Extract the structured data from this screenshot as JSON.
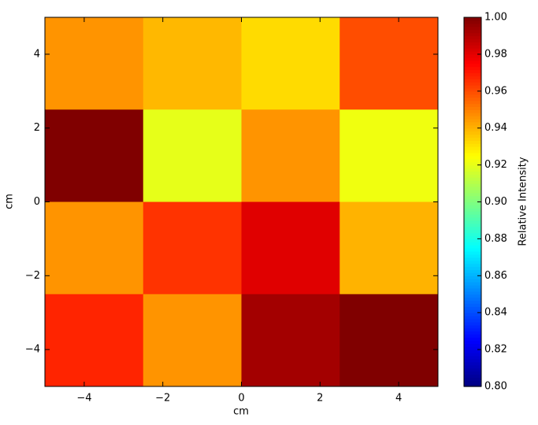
{
  "chart_data": {
    "type": "heatmap",
    "x": [
      -3.75,
      -1.25,
      1.25,
      3.75
    ],
    "y": [
      3.75,
      1.25,
      -1.25,
      -3.75
    ],
    "z": [
      [
        0.946,
        0.939,
        0.932,
        0.96
      ],
      [
        1.0,
        0.92,
        0.946,
        0.922
      ],
      [
        0.946,
        0.965,
        0.981,
        0.94
      ],
      [
        0.968,
        0.946,
        0.993,
        1.0
      ]
    ],
    "xlim": [
      -5,
      5
    ],
    "ylim": [
      -5,
      5
    ],
    "xticks": [
      {
        "value": -4,
        "label": "−4"
      },
      {
        "value": -2,
        "label": "−2"
      },
      0,
      2,
      4
    ],
    "yticks": [
      {
        "value": -4,
        "label": "−4"
      },
      {
        "value": -2,
        "label": "−2"
      },
      0,
      2,
      4
    ],
    "xlabel": "cm",
    "ylabel": "cm",
    "colormap": "jet",
    "clim": [
      0.8,
      1.0
    ],
    "cticks": [
      {
        "value": 0.8,
        "label": "0.80"
      },
      {
        "value": 0.82,
        "label": "0.82"
      },
      {
        "value": 0.84,
        "label": "0.84"
      },
      {
        "value": 0.86,
        "label": "0.86"
      },
      {
        "value": 0.88,
        "label": "0.88"
      },
      {
        "value": 0.9,
        "label": "0.90"
      },
      {
        "value": 0.92,
        "label": "0.92"
      },
      {
        "value": 0.94,
        "label": "0.94"
      },
      {
        "value": 0.96,
        "label": "0.96"
      },
      {
        "value": 0.98,
        "label": "0.98"
      },
      {
        "value": 1.0,
        "label": "1.00"
      }
    ],
    "colorbar_label": "Relative Intensity"
  }
}
